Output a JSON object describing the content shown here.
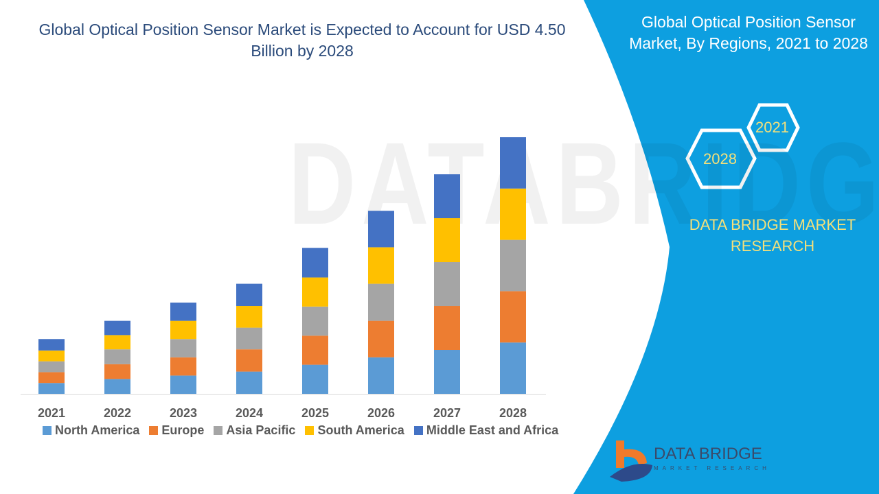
{
  "colors": {
    "panel": "#0d9fe0",
    "accent_text": "#f4e07a",
    "title": "#2a4a7a"
  },
  "panel": {
    "title": "Global Optical Position Sensor Market, By Regions, 2021 to 2028",
    "hex_top": "2021",
    "hex_bottom": "2028",
    "brand": "DATA BRIDGE MARKET RESEARCH"
  },
  "logo": {
    "name": "DATA BRIDGE",
    "tagline": "MARKET RESEARCH",
    "watermark": "DATABRIDGE"
  },
  "chart_data": {
    "type": "bar",
    "stacked": true,
    "title": "Global Optical Position Sensor Market is Expected to Account for USD 4.50 Billion by 2028",
    "unit": "USD Billion (estimated)",
    "categories": [
      "2021",
      "2022",
      "2023",
      "2024",
      "2025",
      "2026",
      "2027",
      "2028"
    ],
    "legend_position": "bottom",
    "grid": false,
    "series": [
      {
        "name": "North America",
        "color": "#5b9bd5",
        "values": [
          0.19,
          0.26,
          0.32,
          0.39,
          0.51,
          0.64,
          0.77,
          0.9
        ]
      },
      {
        "name": "Europe",
        "color": "#ed7d31",
        "values": [
          0.19,
          0.26,
          0.32,
          0.39,
          0.51,
          0.64,
          0.77,
          0.9
        ]
      },
      {
        "name": "Asia Pacific",
        "color": "#a5a5a5",
        "values": [
          0.19,
          0.26,
          0.32,
          0.38,
          0.51,
          0.65,
          0.77,
          0.9
        ]
      },
      {
        "name": "South America",
        "color": "#ffc000",
        "values": [
          0.19,
          0.25,
          0.32,
          0.38,
          0.51,
          0.64,
          0.77,
          0.9
        ]
      },
      {
        "name": "Middle East and Africa",
        "color": "#4472c4",
        "values": [
          0.2,
          0.25,
          0.32,
          0.39,
          0.52,
          0.64,
          0.77,
          0.9
        ]
      }
    ]
  }
}
